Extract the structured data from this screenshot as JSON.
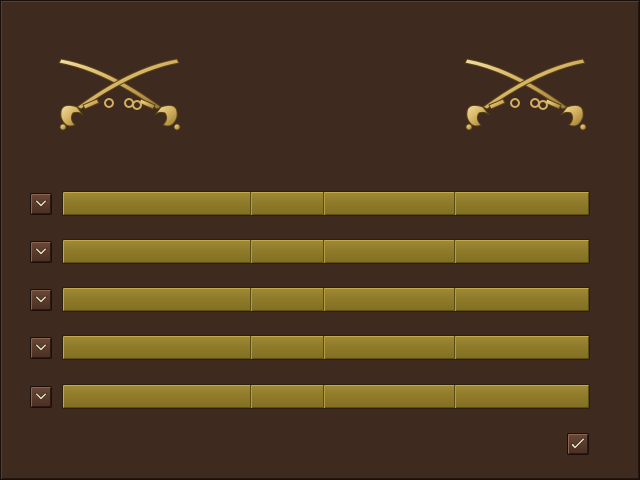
{
  "emblems": [
    {
      "icon": "crossed-sabers-icon"
    },
    {
      "icon": "crossed-sabers-icon"
    }
  ],
  "rows": [
    {
      "cells": [
        "",
        "",
        "",
        ""
      ],
      "button_icon": "chevron-down-icon"
    },
    {
      "cells": [
        "",
        "",
        "",
        ""
      ],
      "button_icon": "chevron-down-icon"
    },
    {
      "cells": [
        "",
        "",
        "",
        ""
      ],
      "button_icon": "chevron-down-icon"
    },
    {
      "cells": [
        "",
        "",
        "",
        ""
      ],
      "button_icon": "chevron-down-icon"
    },
    {
      "cells": [
        "",
        "",
        "",
        ""
      ],
      "button_icon": "chevron-down-icon"
    }
  ],
  "confirm": {
    "icon": "checkmark-icon"
  },
  "colors": {
    "background": "#3f2a20",
    "bar": "#8f7b2a",
    "brass": "#d8b868",
    "button": "#5a3a2b"
  }
}
